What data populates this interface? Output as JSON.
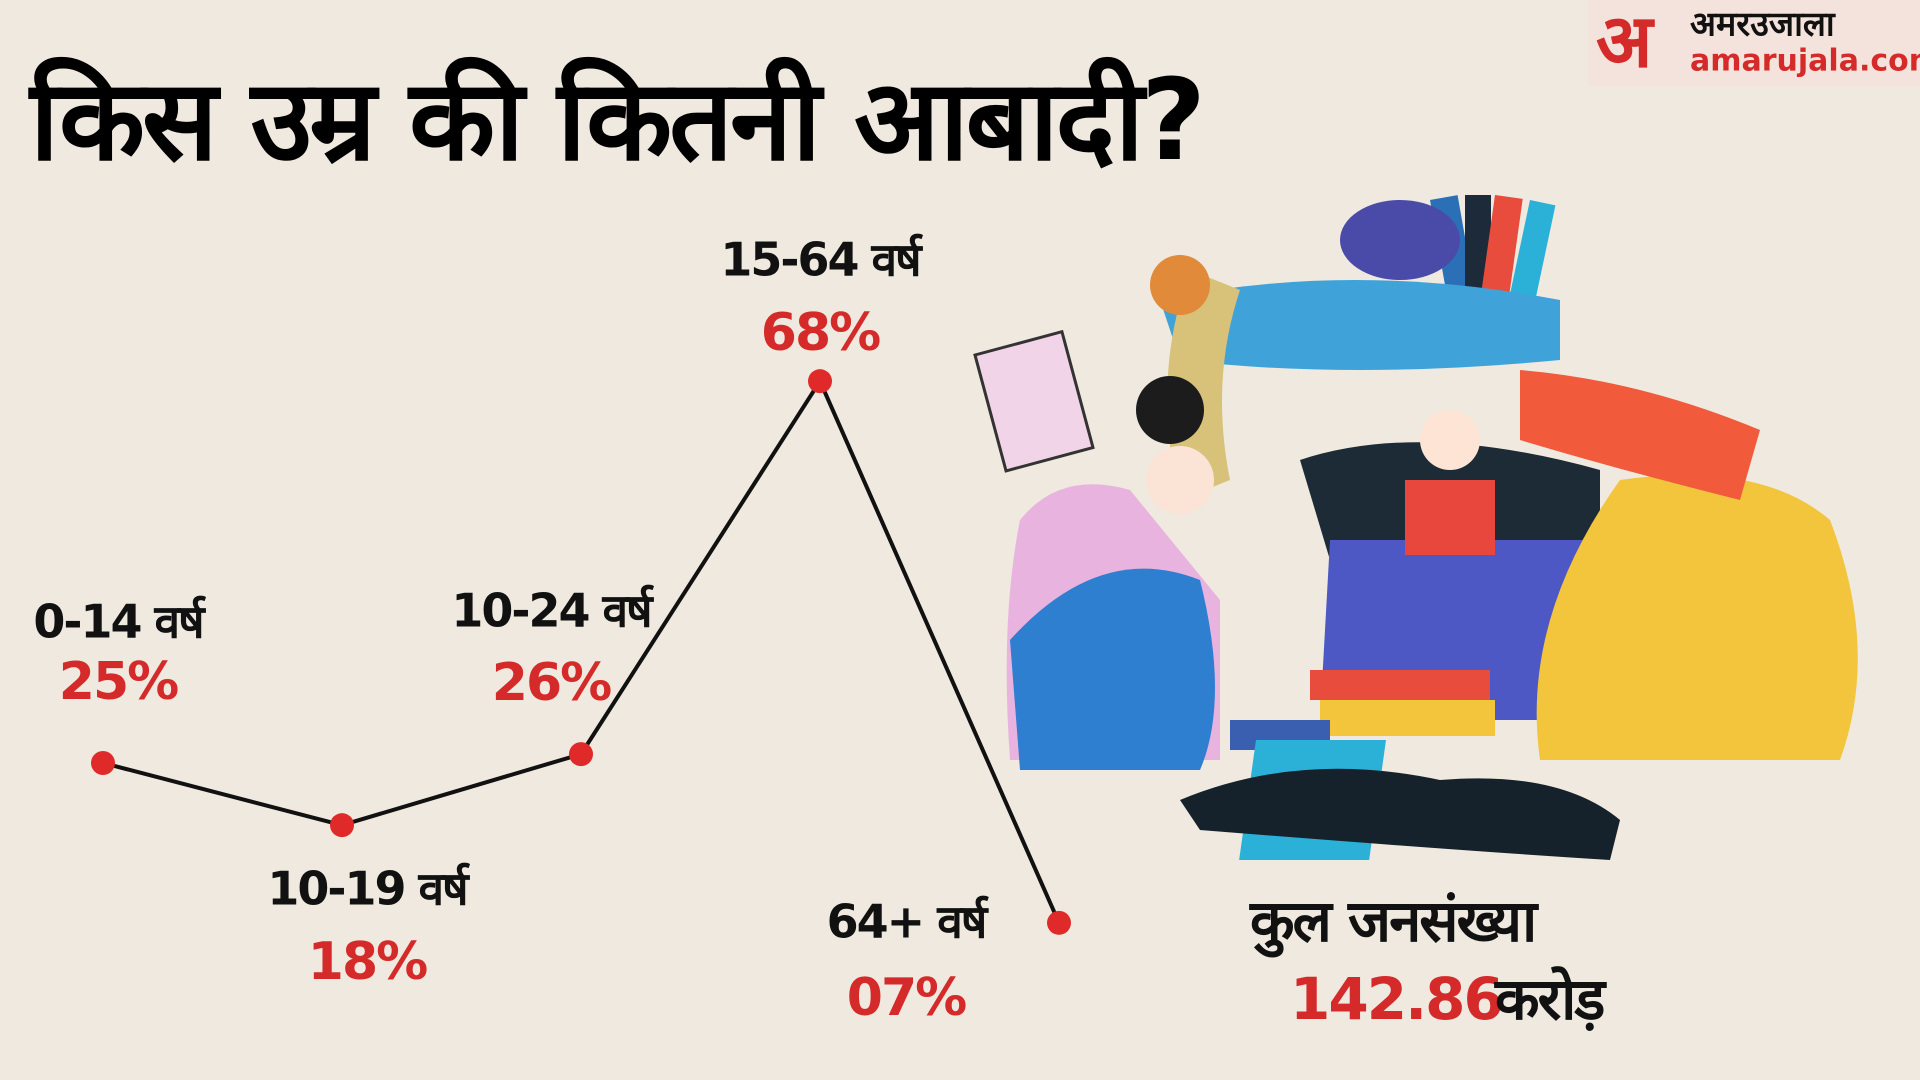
{
  "chart_data": {
    "type": "line",
    "title": "किस उम्र की कितनी आबादी?",
    "categories": [
      "0-14 वर्ष",
      "10-19 वर्ष",
      "10-24 वर्ष",
      "15-64 वर्ष",
      "64+ वर्ष"
    ],
    "values": [
      25,
      18,
      26,
      68,
      7
    ],
    "value_labels": [
      "25%",
      "18%",
      "26%",
      "68%",
      "07%"
    ],
    "color": "#111111",
    "marker_color": "#e02a2a",
    "total_label": "कुल जनसंख्या",
    "total_value": "142.86",
    "total_unit": "करोड़"
  },
  "logo": {
    "mark": "अ",
    "name": "अमरउजाला",
    "site": "amarujala.com"
  }
}
